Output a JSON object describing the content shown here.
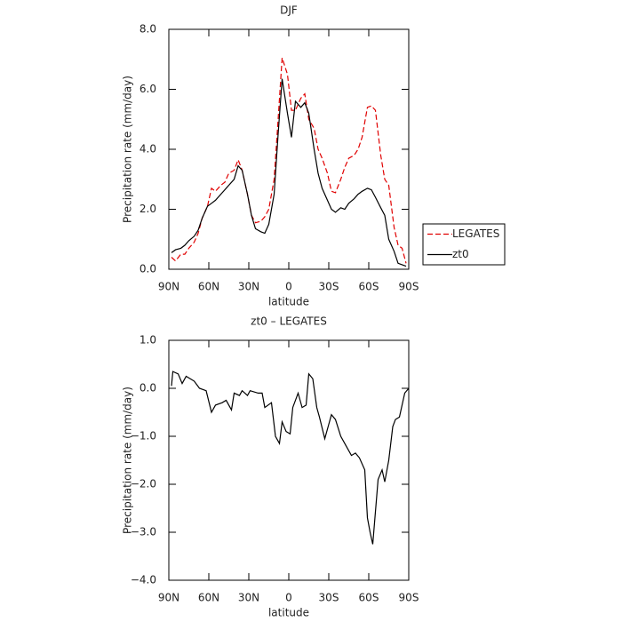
{
  "chart_data": [
    {
      "type": "line",
      "title": "DJF",
      "x_label": "latitude",
      "y_label": "Precipitation rate (mm/day)",
      "xlim": [
        90,
        -90
      ],
      "xticks": [
        {
          "value": 90,
          "label": "90N"
        },
        {
          "value": 60,
          "label": "60N"
        },
        {
          "value": 30,
          "label": "30N"
        },
        0,
        {
          "value": -30,
          "label": "30S"
        },
        {
          "value": -60,
          "label": "60S"
        },
        {
          "value": -90,
          "label": "90S"
        }
      ],
      "ylim": [
        0,
        8
      ],
      "yticks": [
        {
          "value": 0,
          "label": "0.0"
        },
        {
          "value": 2,
          "label": "2.0"
        },
        {
          "value": 4,
          "label": "4.0"
        },
        {
          "value": 6,
          "label": "6.0"
        },
        {
          "value": 8,
          "label": "8.0"
        }
      ],
      "legend": "right",
      "x": [
        88,
        85,
        81,
        78,
        75,
        71,
        68,
        65,
        61,
        58,
        55,
        51,
        48,
        45,
        41,
        38,
        35,
        31,
        28,
        25,
        21,
        18,
        15,
        11,
        8,
        5,
        1,
        -2,
        -5,
        -9,
        -12,
        -15,
        -19,
        -22,
        -25,
        -29,
        -32,
        -35,
        -39,
        -42,
        -45,
        -49,
        -52,
        -55,
        -59,
        -62,
        -65,
        -69,
        -72,
        -75,
        -79,
        -82,
        -85,
        -88
      ],
      "series": [
        {
          "name": "LEGATES",
          "color": "#e00000",
          "dashed": true,
          "values": [
            0.4,
            0.28,
            0.5,
            0.5,
            0.7,
            0.9,
            1.2,
            1.7,
            2.1,
            2.7,
            2.6,
            2.8,
            2.9,
            3.2,
            3.3,
            3.65,
            3.3,
            2.5,
            1.8,
            1.55,
            1.6,
            1.75,
            2.0,
            3.0,
            5.0,
            7.05,
            6.5,
            5.3,
            5.3,
            5.7,
            5.85,
            5.0,
            4.7,
            4.0,
            3.7,
            3.2,
            2.6,
            2.55,
            3.0,
            3.4,
            3.7,
            3.8,
            4.0,
            4.4,
            5.4,
            5.45,
            5.3,
            3.8,
            3.0,
            2.8,
            1.4,
            0.8,
            0.7,
            0.2
          ]
        },
        {
          "name": "zt0",
          "color": "#000000",
          "dashed": false,
          "values": [
            0.55,
            0.65,
            0.7,
            0.8,
            0.95,
            1.1,
            1.3,
            1.7,
            2.1,
            2.2,
            2.3,
            2.5,
            2.65,
            2.8,
            3.0,
            3.45,
            3.3,
            2.5,
            1.8,
            1.35,
            1.25,
            1.2,
            1.5,
            2.5,
            4.5,
            6.35,
            5.2,
            4.4,
            5.6,
            5.4,
            5.55,
            5.2,
            4.0,
            3.2,
            2.7,
            2.3,
            2.0,
            1.9,
            2.05,
            2.0,
            2.2,
            2.35,
            2.5,
            2.6,
            2.7,
            2.65,
            2.4,
            2.05,
            1.8,
            1.0,
            0.6,
            0.2,
            0.15,
            0.1
          ]
        }
      ]
    },
    {
      "type": "line",
      "title": "zt0 – LEGATES",
      "x_label": "latitude",
      "y_label": "Precipitation rate (mm/day)",
      "xlim": [
        90,
        -90
      ],
      "xticks": [
        {
          "value": 90,
          "label": "90N"
        },
        {
          "value": 60,
          "label": "60N"
        },
        {
          "value": 30,
          "label": "30N"
        },
        0,
        {
          "value": -30,
          "label": "30S"
        },
        {
          "value": -60,
          "label": "60S"
        },
        {
          "value": -90,
          "label": "90S"
        }
      ],
      "ylim": [
        -4,
        1
      ],
      "yticks": [
        {
          "value": -4,
          "label": "−4.0"
        },
        {
          "value": -3,
          "label": "−3.0"
        },
        {
          "value": -2,
          "label": "−2.0"
        },
        {
          "value": -1,
          "label": "−1.0"
        },
        {
          "value": 0,
          "label": "0.0"
        },
        {
          "value": 1,
          "label": "1.0"
        }
      ],
      "x": [
        88,
        87,
        83,
        80,
        77,
        71,
        67,
        62,
        58,
        55,
        50,
        47,
        43,
        41,
        37,
        35,
        31,
        29,
        23,
        20,
        18,
        13,
        10,
        7,
        5,
        2,
        -1,
        -3,
        -7,
        -10,
        -13,
        -15,
        -18,
        -21,
        -23,
        -27,
        -30,
        -32,
        -35,
        -39,
        -43,
        -47,
        -50,
        -53,
        -57,
        -59,
        -61,
        -63,
        -67,
        -70,
        -72,
        -75,
        -78,
        -80,
        -83,
        -87,
        -90
      ],
      "series": [
        {
          "color": "#000000",
          "dashed": false,
          "values": [
            0.05,
            0.35,
            0.3,
            0.1,
            0.25,
            0.15,
            0.0,
            -0.05,
            -0.5,
            -0.35,
            -0.3,
            -0.25,
            -0.45,
            -0.1,
            -0.15,
            -0.05,
            -0.15,
            -0.05,
            -0.1,
            -0.1,
            -0.4,
            -0.3,
            -1.0,
            -1.15,
            -0.7,
            -0.9,
            -0.95,
            -0.4,
            -0.1,
            -0.4,
            -0.35,
            0.3,
            0.2,
            -0.4,
            -0.6,
            -1.05,
            -0.75,
            -0.55,
            -0.65,
            -1.0,
            -1.2,
            -1.4,
            -1.35,
            -1.45,
            -1.7,
            -2.7,
            -3.0,
            -3.25,
            -1.9,
            -1.7,
            -1.95,
            -1.5,
            -0.8,
            -0.65,
            -0.6,
            -0.1,
            0.0
          ]
        }
      ]
    }
  ]
}
